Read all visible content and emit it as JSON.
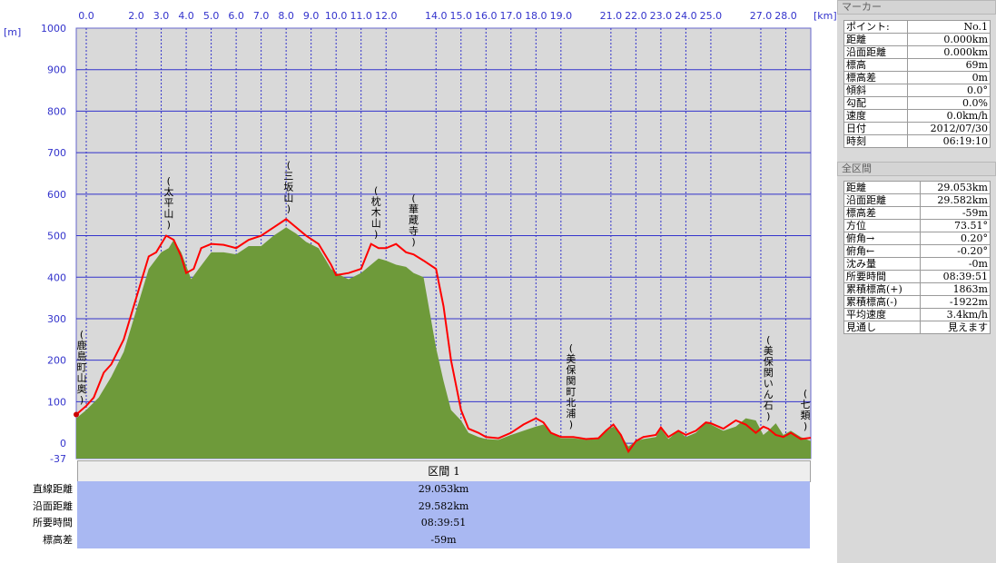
{
  "chart_data": {
    "type": "area",
    "xlabel": "[km]",
    "ylabel": "[m]",
    "xlim": [
      -0.4,
      29.0
    ],
    "ylim": [
      -37,
      1000
    ],
    "x_ticks": [
      "0.0",
      "2.0",
      "3.0",
      "4.0",
      "5.0",
      "6.0",
      "7.0",
      "8.0",
      "9.0",
      "10.0",
      "11.0",
      "12.0",
      "14.0",
      "15.0",
      "16.0",
      "17.0",
      "18.0",
      "19.0",
      "21.0",
      "22.0",
      "23.0",
      "24.0",
      "25.0",
      "27.0",
      "28.0"
    ],
    "x_tick_values": [
      0,
      2,
      3,
      4,
      5,
      6,
      7,
      8,
      9,
      10,
      11,
      12,
      14,
      15,
      16,
      17,
      18,
      19,
      21,
      22,
      23,
      24,
      25,
      27,
      28
    ],
    "y_ticks": [
      1000,
      900,
      800,
      700,
      600,
      500,
      400,
      300,
      200,
      100,
      0,
      -37
    ],
    "grid": true,
    "series": [
      {
        "color": "#6e9a3a",
        "x": [
          -0.4,
          0.0,
          0.5,
          1.0,
          1.5,
          2.0,
          2.5,
          3.0,
          3.3,
          3.5,
          3.8,
          4.2,
          4.5,
          5.0,
          5.5,
          6.0,
          6.5,
          7.0,
          7.5,
          8.0,
          8.4,
          8.8,
          9.3,
          9.8,
          10.0,
          10.5,
          11.0,
          11.4,
          11.7,
          12.0,
          12.4,
          12.8,
          13.1,
          13.5,
          14.0,
          14.3,
          14.6,
          15.0,
          15.3,
          15.7,
          16.0,
          16.5,
          17.0,
          17.5,
          18.0,
          18.3,
          18.6,
          19.0,
          19.5,
          20.0,
          20.5,
          20.8,
          21.1,
          21.4,
          21.7,
          22.0,
          22.3,
          22.8,
          23.0,
          23.3,
          23.7,
          24.0,
          24.4,
          24.8,
          25.0,
          25.5,
          26.0,
          26.4,
          26.8,
          27.1,
          27.3,
          27.6,
          27.9,
          28.2,
          28.6,
          29.0
        ],
        "y": [
          60,
          80,
          110,
          160,
          220,
          320,
          420,
          460,
          470,
          490,
          460,
          395,
          420,
          460,
          460,
          455,
          475,
          475,
          500,
          520,
          505,
          485,
          470,
          420,
          410,
          395,
          410,
          430,
          445,
          440,
          430,
          425,
          410,
          400,
          230,
          150,
          80,
          55,
          25,
          15,
          10,
          8,
          20,
          30,
          40,
          45,
          25,
          12,
          12,
          8,
          10,
          28,
          40,
          20,
          -8,
          5,
          10,
          15,
          35,
          10,
          30,
          15,
          25,
          50,
          45,
          30,
          40,
          60,
          55,
          20,
          30,
          48,
          20,
          30,
          15,
          5
        ]
      },
      {
        "color": "#ff0000",
        "x": [
          -0.4,
          0.0,
          0.3,
          0.7,
          1.0,
          1.5,
          2.0,
          2.5,
          2.8,
          3.2,
          3.5,
          3.8,
          4.0,
          4.3,
          4.6,
          5.0,
          5.5,
          6.0,
          6.5,
          7.0,
          7.5,
          8.0,
          8.4,
          8.8,
          9.3,
          9.8,
          10.0,
          10.5,
          11.0,
          11.4,
          11.7,
          12.0,
          12.4,
          12.8,
          13.1,
          13.5,
          14.0,
          14.3,
          14.6,
          15.0,
          15.3,
          15.7,
          16.0,
          16.5,
          17.0,
          17.5,
          18.0,
          18.3,
          18.6,
          19.0,
          19.5,
          20.0,
          20.5,
          20.8,
          21.1,
          21.4,
          21.7,
          22.0,
          22.3,
          22.8,
          23.0,
          23.3,
          23.7,
          24.0,
          24.4,
          24.8,
          25.0,
          25.5,
          26.0,
          26.4,
          26.8,
          27.1,
          27.3,
          27.6,
          27.9,
          28.2,
          28.6,
          29.0
        ],
        "y": [
          69,
          90,
          110,
          170,
          190,
          250,
          350,
          450,
          460,
          500,
          490,
          450,
          410,
          420,
          470,
          480,
          478,
          470,
          490,
          500,
          520,
          540,
          520,
          500,
          480,
          430,
          405,
          410,
          420,
          480,
          470,
          470,
          480,
          460,
          455,
          440,
          420,
          330,
          200,
          80,
          35,
          25,
          15,
          12,
          25,
          45,
          60,
          50,
          25,
          15,
          15,
          10,
          12,
          30,
          45,
          20,
          -20,
          5,
          15,
          20,
          38,
          15,
          30,
          20,
          30,
          50,
          48,
          35,
          55,
          45,
          25,
          40,
          35,
          20,
          15,
          25,
          10,
          13
        ]
      }
    ],
    "annotations": [
      {
        "text": "(鹿島町山奥)",
        "x": -0.3
      },
      {
        "text": "(太平山)",
        "x": 3.3
      },
      {
        "text": "(三坂山)",
        "x": 8.1
      },
      {
        "text": "(枕木山)",
        "x": 11.6
      },
      {
        "text": "(華蔵寺)",
        "x": 13.1
      },
      {
        "text": "(美保関町北浦)",
        "x": 19.4
      },
      {
        "text": "(美保関いん石)",
        "x": 27.3
      },
      {
        "text": "(七類)",
        "x": 28.8
      }
    ]
  },
  "colors": {
    "plot_bg": "#d9d9d9",
    "grid": "#3333cc",
    "axis_text": "#3333cc",
    "area": "#6e9a3a",
    "line": "#ff0000",
    "stats_bg": "#a9b8f2"
  },
  "marker": {
    "title": "マーカー",
    "rows": [
      {
        "label": "ポイント:",
        "value": "No.1"
      },
      {
        "label": "距離",
        "value": "0.000km"
      },
      {
        "label": "沿面距離",
        "value": "0.000km"
      },
      {
        "label": "標高",
        "value": "69m"
      },
      {
        "label": "標高差",
        "value": "0m"
      },
      {
        "label": "傾斜",
        "value": "0.0°"
      },
      {
        "label": "勾配",
        "value": "0.0%"
      },
      {
        "label": "速度",
        "value": "0.0km/h"
      },
      {
        "label": "日付",
        "value": "2012/07/30"
      },
      {
        "label": "時刻",
        "value": "06:19:10"
      }
    ]
  },
  "total": {
    "title": "全区間",
    "rows": [
      {
        "label": "距離",
        "value": "29.053km"
      },
      {
        "label": "沿面距離",
        "value": "29.582km"
      },
      {
        "label": "標高差",
        "value": "-59m"
      },
      {
        "label": "方位",
        "value": "73.51°"
      },
      {
        "label": "俯角→",
        "value": "0.20°"
      },
      {
        "label": "俯角←",
        "value": "-0.20°"
      },
      {
        "label": "沈み量",
        "value": "-0m"
      },
      {
        "label": "所要時間",
        "value": "08:39:51"
      },
      {
        "label": "累積標高(+)",
        "value": "1863m"
      },
      {
        "label": "累積標高(-)",
        "value": "-1922m"
      },
      {
        "label": "平均速度",
        "value": "3.4km/h"
      },
      {
        "label": "見通し",
        "value": "見えます"
      }
    ]
  },
  "section": {
    "header": "区間 1",
    "labels": [
      "直線距離",
      "沿面距離",
      "所要時間",
      "標高差"
    ],
    "values": [
      "29.053km",
      "29.582km",
      "08:39:51",
      "-59m"
    ]
  }
}
